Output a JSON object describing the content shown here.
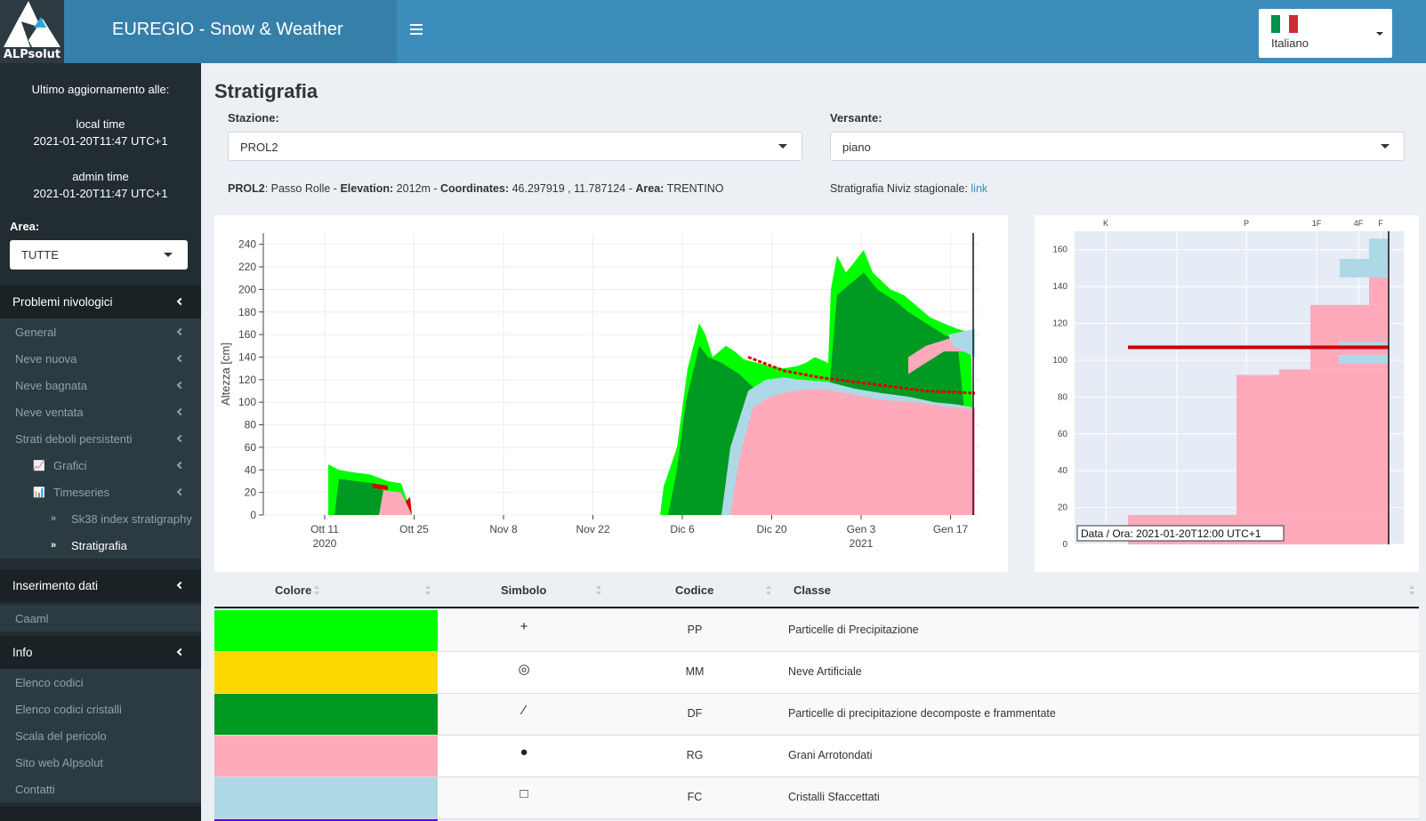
{
  "header": {
    "logo_text": "ALPsolut",
    "app_title": "EUREGIO - Snow & Weather",
    "language": "Italiano"
  },
  "sidebar": {
    "last_update_label": "Ultimo aggiornamento alle:",
    "local_time_label": "local time",
    "local_time_value": "2021-01-20T11:47 UTC+1",
    "admin_time_label": "admin time",
    "admin_time_value": "2021-01-20T11:47 UTC+1",
    "area_label": "Area:",
    "area_value": "TUTTE",
    "sections": [
      "Problemi nivologici",
      "Inserimento dati",
      "Info"
    ],
    "problem_items": [
      "General",
      "Neve nuova",
      "Neve bagnata",
      "Neve ventata",
      "Strati deboli persistenti"
    ],
    "sub_items": [
      "Grafici",
      "Timeseries"
    ],
    "subsub_items": [
      "Sk38 index stratigraphy",
      "Stratigrafia"
    ],
    "input_items": [
      "Caaml"
    ],
    "info_items": [
      "Elenco codici",
      "Elenco codici cristalli",
      "Scala del pericolo",
      "Sito web Alpsolut",
      "Contatti"
    ]
  },
  "main": {
    "page_title": "Stratigrafia",
    "station_label": "Stazione:",
    "station_value": "PROL2",
    "slope_label": "Versante:",
    "slope_value": "piano",
    "info": {
      "station_code": "PROL2",
      "station_name": ": Passo Rolle - ",
      "elevation_label": "Elevation:",
      "elevation_value": " 2012m - ",
      "coords_label": "Coordinates:",
      "coords_value": " 46.297919 , 11.787124 - ",
      "area_label": "Area:",
      "area_value": " TRENTINO"
    },
    "niviz_text": "Stratigrafia Niviz stagionale: ",
    "niviz_link": "link"
  },
  "chart_data": [
    {
      "type": "area",
      "ylabel": "Altezza [cm]",
      "ylim": [
        0,
        250
      ],
      "yticks": [
        0,
        20,
        40,
        60,
        80,
        100,
        120,
        140,
        160,
        180,
        200,
        220,
        240
      ],
      "xticks": [
        {
          "label": "Ott 11",
          "sub": "2020"
        },
        {
          "label": "Ott 25",
          "sub": ""
        },
        {
          "label": "Nov 8",
          "sub": ""
        },
        {
          "label": "Nov 22",
          "sub": ""
        },
        {
          "label": "Dic 6",
          "sub": ""
        },
        {
          "label": "Dic 20",
          "sub": ""
        },
        {
          "label": "Gen 3",
          "sub": "2021"
        },
        {
          "label": "Gen 17",
          "sub": ""
        }
      ],
      "snow_height_cm": [
        {
          "x": "2020-10-11",
          "y": 45
        },
        {
          "x": "2020-10-18",
          "y": 30
        },
        {
          "x": "2020-10-25",
          "y": 0
        },
        {
          "x": "2020-12-04",
          "y": 25
        },
        {
          "x": "2020-12-09",
          "y": 170
        },
        {
          "x": "2020-12-15",
          "y": 145
        },
        {
          "x": "2020-12-24",
          "y": 130
        },
        {
          "x": "2020-12-28",
          "y": 230
        },
        {
          "x": "2021-01-02",
          "y": 235
        },
        {
          "x": "2021-01-08",
          "y": 200
        },
        {
          "x": "2021-01-20",
          "y": 165
        }
      ],
      "series_colors": {
        "PP": "#00ff00",
        "DF": "#009a22",
        "RG": "#ffaabb",
        "FC": "#add8e6",
        "MF": "#dd0000"
      }
    },
    {
      "type": "bar",
      "xticks": [
        "K",
        "P",
        "1F",
        "4F",
        "F"
      ],
      "ylim": [
        0,
        170
      ],
      "yticks": [
        0,
        20,
        40,
        60,
        80,
        100,
        120,
        140,
        160
      ],
      "tooltip": "Data / Ora: 2021-01-20T12:00 UTC+1",
      "marker_height_cm": 106
    }
  ],
  "table": {
    "headers": [
      "Colore",
      "Simbolo",
      "Codice",
      "Classe"
    ],
    "rows": [
      {
        "color": "#00ff00",
        "symbol": "+",
        "code": "PP",
        "class": "Particelle di Precipitazione"
      },
      {
        "color": "#ffd700",
        "symbol": "◎",
        "code": "MM",
        "class": "Neve Artificiale"
      },
      {
        "color": "#009a22",
        "symbol": "⁄",
        "code": "DF",
        "class": "Particelle di precipitazione decomposte e frammentate"
      },
      {
        "color": "#ffaabb",
        "symbol": "●",
        "code": "RG",
        "class": "Grani Arrotondati"
      },
      {
        "color": "#add8e6",
        "symbol": "□",
        "code": "FC",
        "class": "Cristalli Sfaccettati"
      }
    ]
  }
}
